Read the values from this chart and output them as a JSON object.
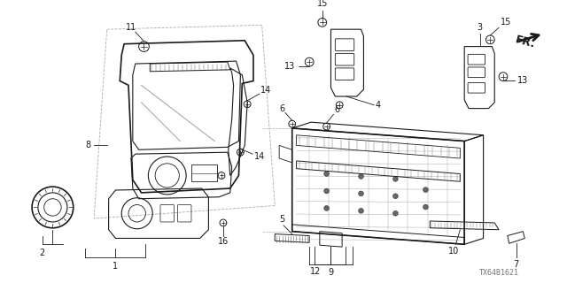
{
  "background_color": "#ffffff",
  "watermark": "TX64B1621",
  "line_color": "#1a1a1a",
  "gray": "#666666",
  "light_gray": "#aaaaaa"
}
